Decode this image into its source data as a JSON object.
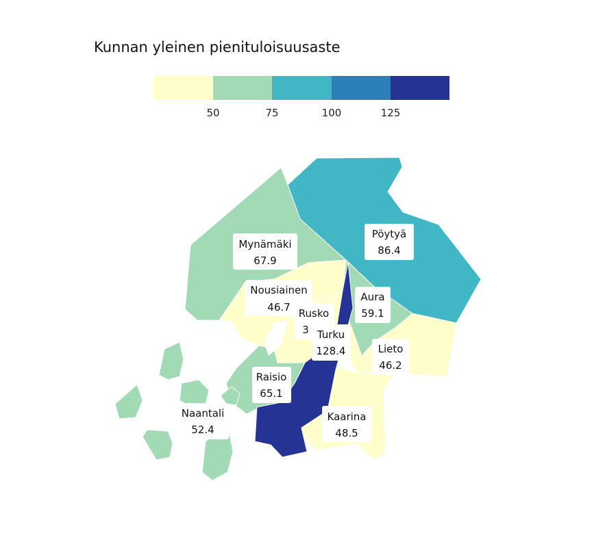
{
  "title": "Kunnan yleinen pienituloisuusaste",
  "legend": {
    "ticks": [
      "50",
      "75",
      "100",
      "125"
    ],
    "colors": [
      "#ffffcc",
      "#a1dab4",
      "#41b6c4",
      "#2c7fb8",
      "#253494"
    ]
  },
  "municipalities": [
    {
      "name": "Mynämäki",
      "value": "67.9",
      "color": "#a1dab4"
    },
    {
      "name": "Pöytyä",
      "value": "86.4",
      "color": "#41b6c4"
    },
    {
      "name": "Nousiainen",
      "value": "46.7",
      "color": "#ffffcc"
    },
    {
      "name": "Aura",
      "value": "59.1",
      "color": "#a1dab4"
    },
    {
      "name": "Rusko",
      "value": "3",
      "color": "#ffffcc"
    },
    {
      "name": "Turku",
      "value": "128.4",
      "color": "#253494"
    },
    {
      "name": "Lieto",
      "value": "46.2",
      "color": "#ffffcc"
    },
    {
      "name": "Raisio",
      "value": "65.1",
      "color": "#a1dab4"
    },
    {
      "name": "Naantali",
      "value": "52.4",
      "color": "#a1dab4"
    },
    {
      "name": "Kaarina",
      "value": "48.5",
      "color": "#ffffcc"
    }
  ]
}
